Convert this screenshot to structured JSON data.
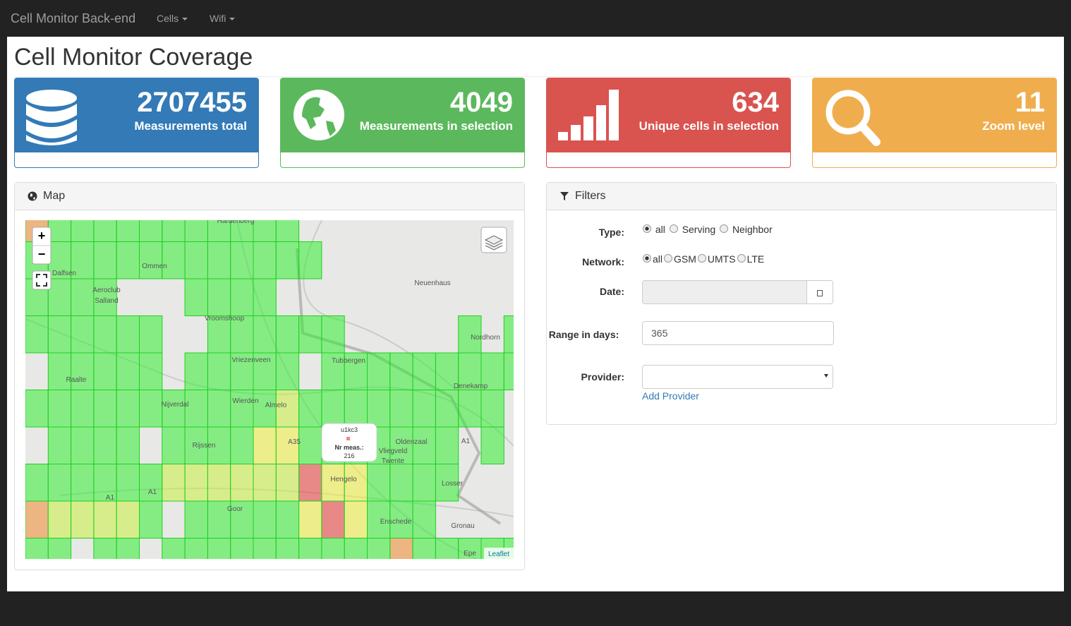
{
  "navbar": {
    "brand": "Cell Monitor Back-end",
    "menus": [
      "Cells",
      "Wifi"
    ]
  },
  "page": {
    "title": "Cell Monitor Coverage"
  },
  "stats": [
    {
      "value": "2707455",
      "label": "Measurements total"
    },
    {
      "value": "4049",
      "label": "Measurements in selection"
    },
    {
      "value": "634",
      "label": "Unique cells in selection"
    },
    {
      "value": "11",
      "label": "Zoom level"
    }
  ],
  "map": {
    "heading": "Map",
    "zoom_in": "+",
    "zoom_out": "−",
    "attribution": "Leaflet",
    "popup": {
      "cell": "u1kc3",
      "label": "Nr meas.:",
      "value": "216"
    },
    "places": [
      "Hardenberg",
      "Ommen",
      "Dalfsen",
      "Aeroclub",
      "Salland",
      "Vroomshoop",
      "Neuenhaus",
      "Nordhorn",
      "Vriezenveen",
      "Tubbergen",
      "Raalte",
      "Denekamp",
      "Nijverdal",
      "Wierden",
      "Almelo",
      "Rijssen",
      "A35",
      "Oldenzaal",
      "Vliegveld",
      "Twente",
      "A1",
      "Hengelo",
      "Losser",
      "A1",
      "A1",
      "Goor",
      "Enschede",
      "Gronau",
      "Epe"
    ]
  },
  "filters": {
    "heading": "Filters",
    "type": {
      "label": "Type:",
      "options": [
        "all",
        "Serving",
        "Neighbor"
      ]
    },
    "network": {
      "label": "Network:",
      "options": [
        "all",
        "GSM",
        "UMTS",
        "LTE"
      ]
    },
    "date": {
      "label": "Date:"
    },
    "range": {
      "label": "Range in days:",
      "value": "365"
    },
    "provider": {
      "label": "Provider:",
      "link": "Add Provider"
    }
  }
}
